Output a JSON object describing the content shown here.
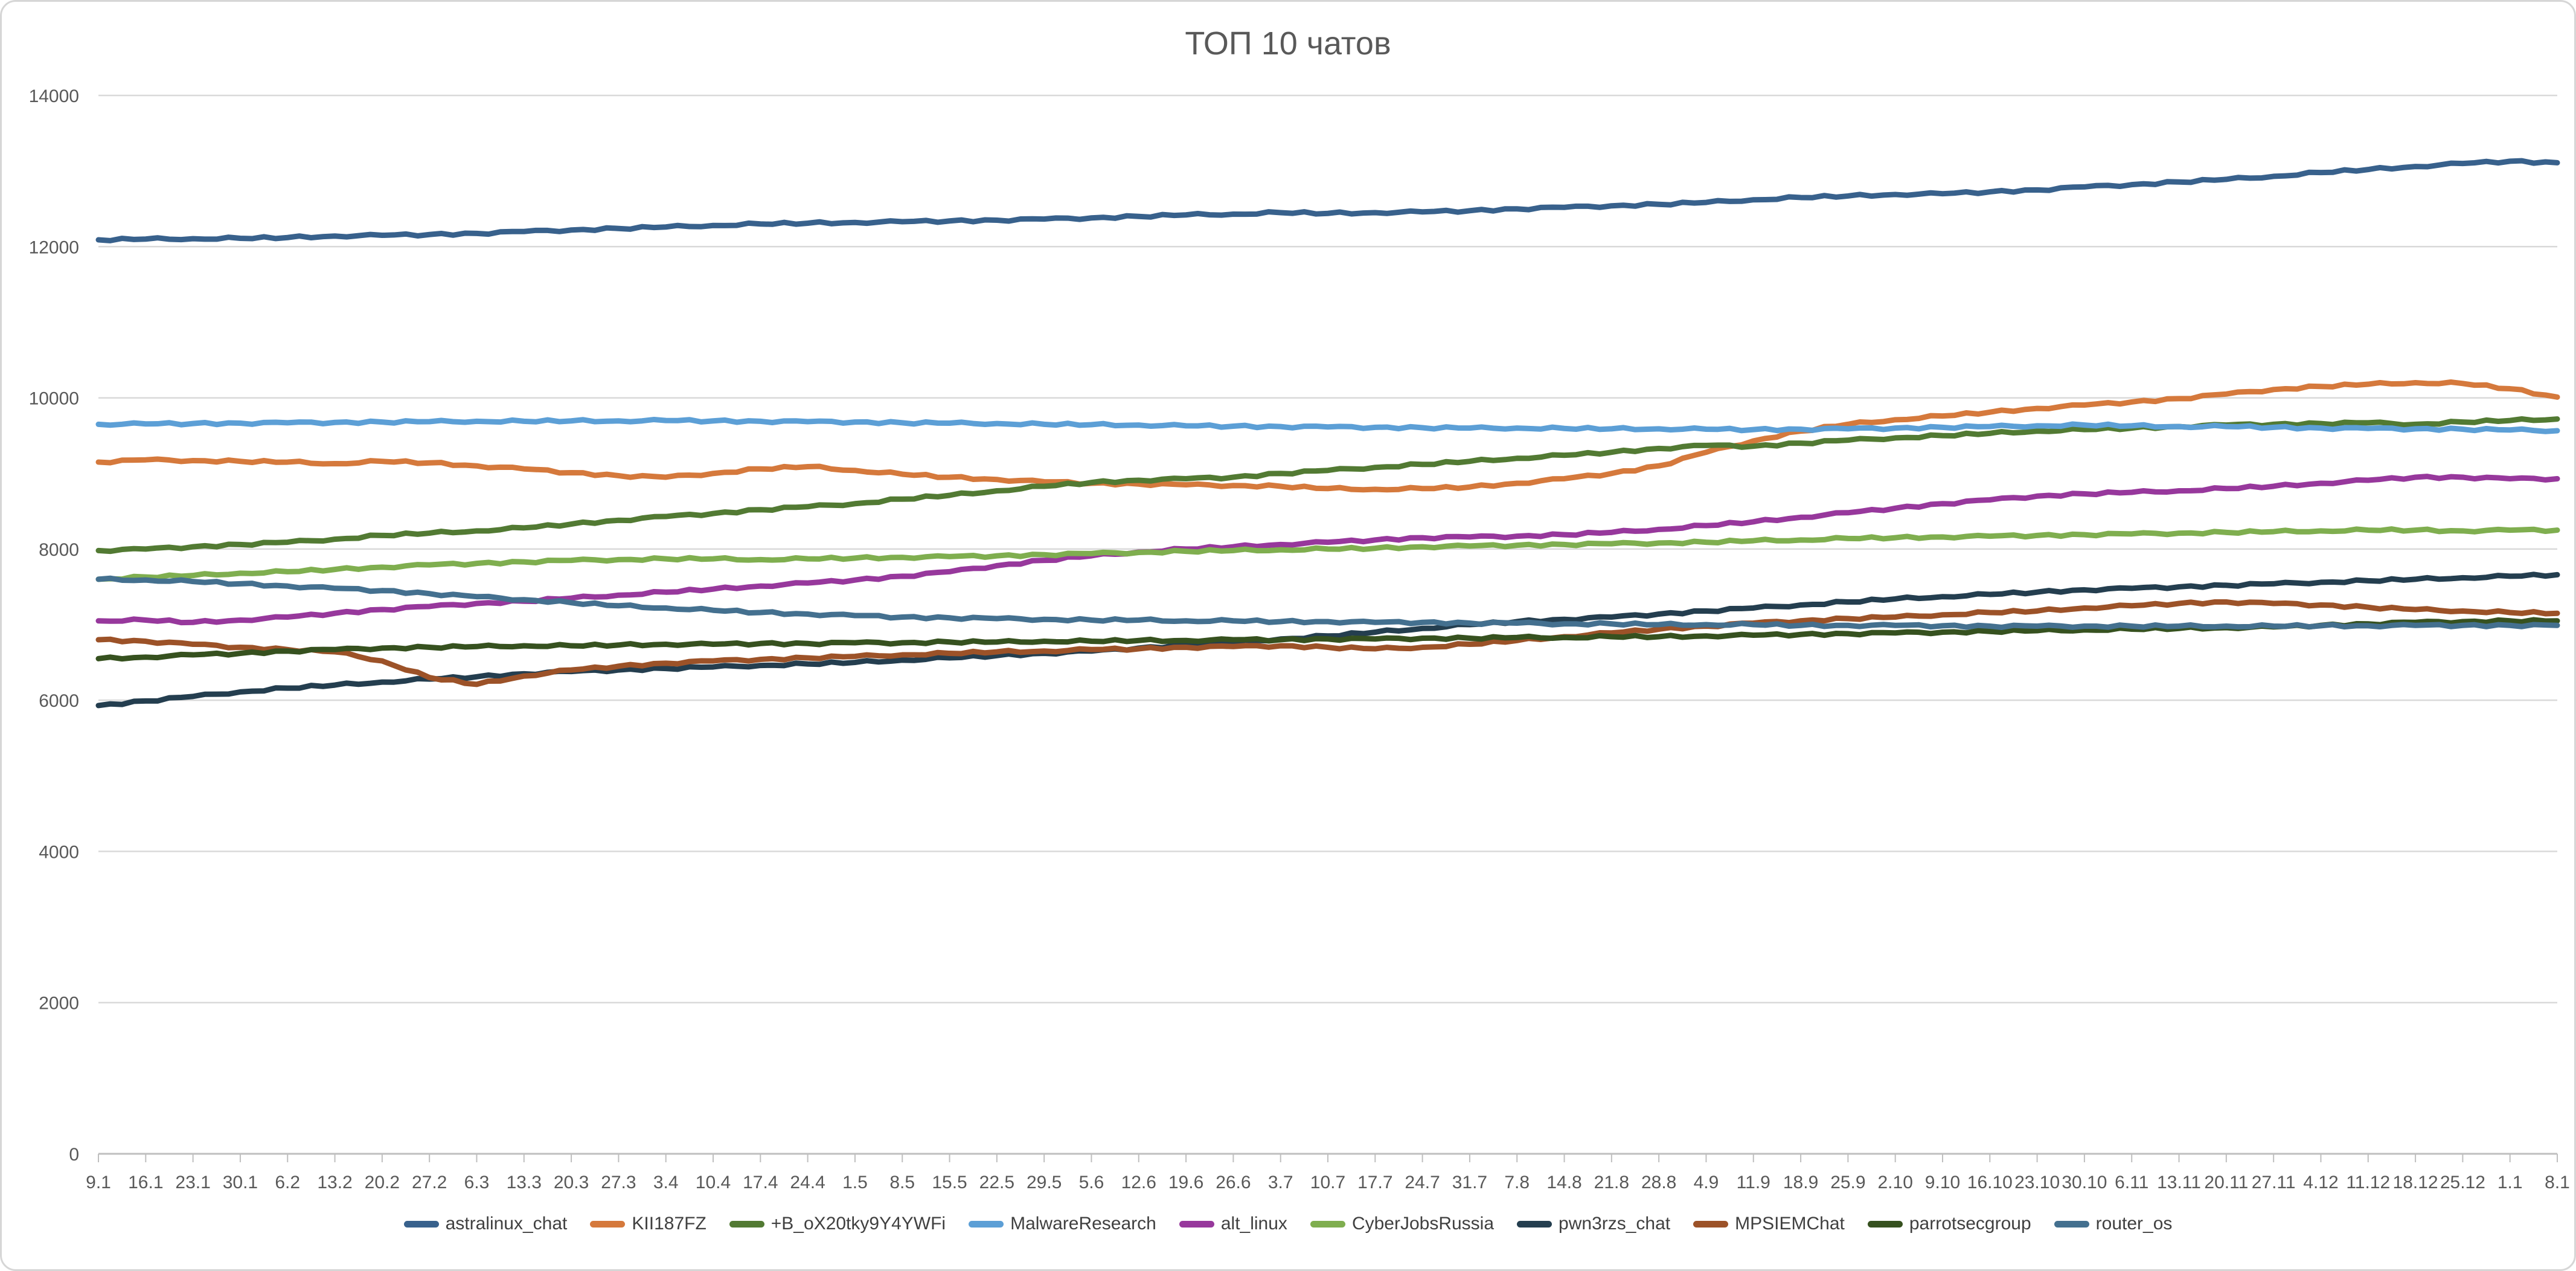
{
  "chart_data": {
    "type": "line",
    "title": "ТОП 10 чатов",
    "xlabel": "",
    "ylabel": "",
    "ylim": [
      0,
      14000
    ],
    "y_ticks": [
      0,
      2000,
      4000,
      6000,
      8000,
      10000,
      12000,
      14000
    ],
    "grid": "horizontal",
    "legend_position": "bottom",
    "x_labels": [
      "9.1",
      "16.1",
      "23.1",
      "30.1",
      "6.2",
      "13.2",
      "20.2",
      "27.2",
      "6.3",
      "13.3",
      "20.3",
      "27.3",
      "3.4",
      "10.4",
      "17.4",
      "24.4",
      "1.5",
      "8.5",
      "15.5",
      "22.5",
      "29.5",
      "5.6",
      "12.6",
      "19.6",
      "26.6",
      "3.7",
      "10.7",
      "17.7",
      "24.7",
      "31.7",
      "7.8",
      "14.8",
      "21.8",
      "28.8",
      "4.9",
      "11.9",
      "18.9",
      "25.9",
      "2.10",
      "9.10",
      "16.10",
      "23.10",
      "30.10",
      "6.11",
      "13.11",
      "20.11",
      "27.11",
      "4.12",
      "11.12",
      "18.12",
      "25.12",
      "1.1",
      "8.1"
    ],
    "series": [
      {
        "name": "astralinux_chat",
        "color": "#38618C",
        "values": [
          12090,
          12100,
          12105,
          12110,
          12120,
          12140,
          12150,
          12160,
          12175,
          12200,
          12220,
          12240,
          12260,
          12280,
          12300,
          12310,
          12320,
          12330,
          12340,
          12350,
          12365,
          12380,
          12400,
          12420,
          12430,
          12450,
          12440,
          12450,
          12460,
          12475,
          12500,
          12520,
          12540,
          12560,
          12585,
          12620,
          12650,
          12670,
          12690,
          12700,
          12725,
          12750,
          12790,
          12820,
          12855,
          12890,
          12930,
          12980,
          13020,
          13060,
          13100,
          13130,
          13110
        ]
      },
      {
        "name": "KII187FZ",
        "color": "#D5793C",
        "values": [
          9150,
          9180,
          9170,
          9160,
          9150,
          9130,
          9160,
          9140,
          9100,
          9060,
          9010,
          8970,
          8950,
          9000,
          9060,
          9090,
          9040,
          8990,
          8950,
          8920,
          8890,
          8870,
          8860,
          8850,
          8840,
          8830,
          8800,
          8790,
          8800,
          8820,
          8870,
          8930,
          9000,
          9100,
          9280,
          9430,
          9560,
          9650,
          9710,
          9760,
          9810,
          9860,
          9905,
          9945,
          9990,
          10050,
          10110,
          10150,
          10180,
          10200,
          10190,
          10120,
          10010
        ]
      },
      {
        "name": "+B_oX20tky9Y4YWFi",
        "color": "#527A33",
        "values": [
          7980,
          8000,
          8030,
          8060,
          8090,
          8130,
          8180,
          8210,
          8240,
          8280,
          8330,
          8380,
          8430,
          8470,
          8520,
          8560,
          8600,
          8660,
          8710,
          8770,
          8830,
          8880,
          8910,
          8930,
          8950,
          9000,
          9040,
          9080,
          9120,
          9160,
          9200,
          9240,
          9280,
          9330,
          9370,
          9360,
          9400,
          9440,
          9470,
          9500,
          9530,
          9560,
          9580,
          9600,
          9620,
          9640,
          9650,
          9660,
          9670,
          9650,
          9680,
          9700,
          9720
        ]
      },
      {
        "name": "MalwareResearch",
        "color": "#5C9FD6",
        "values": [
          9650,
          9655,
          9660,
          9665,
          9670,
          9675,
          9680,
          9685,
          9690,
          9690,
          9695,
          9695,
          9700,
          9695,
          9690,
          9685,
          9680,
          9670,
          9665,
          9660,
          9650,
          9645,
          9640,
          9630,
          9625,
          9620,
          9615,
          9610,
          9605,
          9600,
          9600,
          9595,
          9590,
          9590,
          9585,
          9580,
          9585,
          9590,
          9600,
          9610,
          9620,
          9630,
          9640,
          9630,
          9620,
          9620,
          9610,
          9600,
          9595,
          9590,
          9585,
          9575,
          9565
        ]
      },
      {
        "name": "alt_linux",
        "color": "#97389C",
        "values": [
          7050,
          7060,
          7030,
          7060,
          7100,
          7150,
          7200,
          7240,
          7280,
          7310,
          7350,
          7390,
          7430,
          7470,
          7510,
          7550,
          7590,
          7640,
          7700,
          7780,
          7850,
          7910,
          7960,
          8000,
          8030,
          8060,
          8090,
          8120,
          8150,
          8160,
          8170,
          8190,
          8220,
          8260,
          8310,
          8360,
          8420,
          8480,
          8540,
          8600,
          8650,
          8700,
          8730,
          8750,
          8770,
          8800,
          8830,
          8870,
          8910,
          8950,
          8950,
          8930,
          8930
        ]
      },
      {
        "name": "CyberJobsRussia",
        "color": "#7FAE4F",
        "values": [
          7600,
          7630,
          7650,
          7680,
          7700,
          7730,
          7760,
          7790,
          7810,
          7830,
          7850,
          7860,
          7870,
          7870,
          7860,
          7870,
          7880,
          7890,
          7900,
          7910,
          7925,
          7940,
          7955,
          7970,
          7980,
          7990,
          8000,
          8010,
          8030,
          8040,
          8050,
          8060,
          8070,
          8080,
          8090,
          8110,
          8120,
          8140,
          8150,
          8160,
          8170,
          8180,
          8190,
          8200,
          8210,
          8220,
          8230,
          8240,
          8250,
          8250,
          8240,
          8250,
          8250
        ]
      },
      {
        "name": "pwn3rzs_chat",
        "color": "#243E4F",
        "values": [
          5930,
          5990,
          6050,
          6110,
          6160,
          6200,
          6240,
          6280,
          6310,
          6350,
          6380,
          6400,
          6420,
          6440,
          6460,
          6480,
          6500,
          6530,
          6560,
          6590,
          6620,
          6650,
          6690,
          6730,
          6770,
          6810,
          6850,
          6900,
          6950,
          7000,
          7040,
          7070,
          7100,
          7140,
          7180,
          7220,
          7260,
          7300,
          7340,
          7370,
          7400,
          7430,
          7460,
          7480,
          7500,
          7520,
          7540,
          7560,
          7580,
          7600,
          7620,
          7640,
          7660
        ]
      },
      {
        "name": "MPSIEMChat",
        "color": "#9C5228",
        "values": [
          6800,
          6780,
          6740,
          6700,
          6670,
          6640,
          6520,
          6300,
          6210,
          6320,
          6400,
          6450,
          6490,
          6520,
          6540,
          6560,
          6580,
          6600,
          6620,
          6640,
          6650,
          6670,
          6680,
          6700,
          6710,
          6720,
          6700,
          6680,
          6700,
          6740,
          6790,
          6840,
          6890,
          6940,
          6980,
          7020,
          7050,
          7080,
          7100,
          7130,
          7160,
          7180,
          7220,
          7250,
          7280,
          7300,
          7280,
          7260,
          7230,
          7200,
          7180,
          7160,
          7150
        ]
      },
      {
        "name": "parrotsecgroup",
        "color": "#36511F",
        "values": [
          6550,
          6570,
          6600,
          6620,
          6650,
          6670,
          6690,
          6700,
          6710,
          6720,
          6720,
          6730,
          6740,
          6740,
          6750,
          6750,
          6760,
          6760,
          6770,
          6770,
          6780,
          6780,
          6790,
          6790,
          6800,
          6800,
          6810,
          6810,
          6820,
          6820,
          6830,
          6830,
          6840,
          6840,
          6850,
          6860,
          6870,
          6880,
          6890,
          6900,
          6910,
          6920,
          6930,
          6940,
          6950,
          6960,
          6970,
          6990,
          7010,
          7030,
          7040,
          7050,
          7050
        ]
      },
      {
        "name": "router_os",
        "color": "#44708F",
        "values": [
          7600,
          7590,
          7570,
          7540,
          7510,
          7480,
          7450,
          7410,
          7370,
          7330,
          7290,
          7250,
          7220,
          7190,
          7160,
          7140,
          7120,
          7100,
          7090,
          7080,
          7070,
          7060,
          7060,
          7050,
          7050,
          7040,
          7040,
          7030,
          7030,
          7020,
          7020,
          7010,
          7010,
          7000,
          7000,
          7000,
          6990,
          6990,
          6990,
          6985,
          6980,
          6980,
          6980,
          6980,
          6980,
          6980,
          6980,
          6985,
          6985,
          6990,
          6990,
          6990,
          6990
        ]
      }
    ]
  },
  "style": {
    "grid_color": "#D9D9D9",
    "axis_color": "#BFBFBF",
    "label_color": "#595959",
    "legend_text_color": "#404040",
    "background": "#FFFFFF"
  }
}
